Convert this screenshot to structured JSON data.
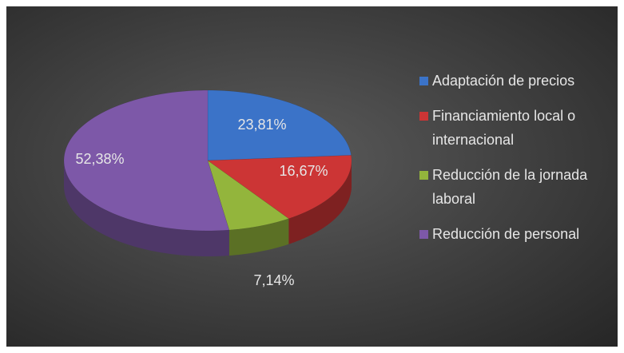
{
  "chart_data": {
    "type": "pie3d",
    "categories": [
      "Adaptación de precios",
      "Financiamiento local o internacional",
      "Reducción de la jornada laboral",
      "Reducción de personal"
    ],
    "values": [
      23.81,
      16.67,
      7.14,
      52.38
    ],
    "value_labels": [
      "23,81%",
      "16,67%",
      "7,14%",
      "52,38%"
    ],
    "colors": [
      "#3b73c8",
      "#cc3535",
      "#93b53c",
      "#7d58a8"
    ],
    "legend": "right"
  }
}
